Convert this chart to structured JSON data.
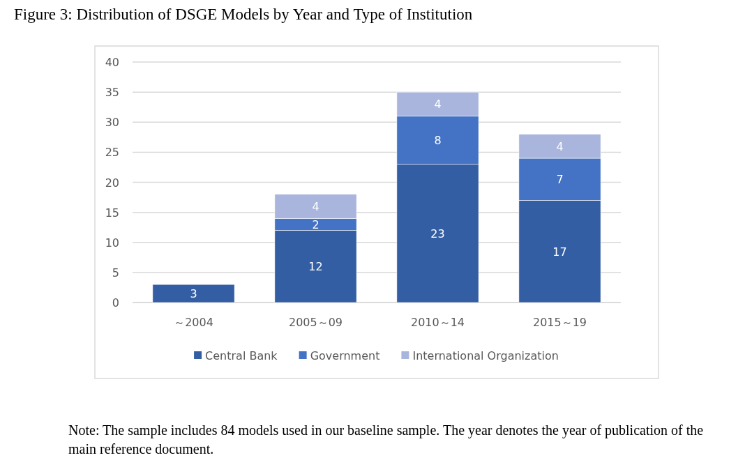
{
  "chart_data": {
    "type": "bar",
    "title": "Figure 3: Distribution of DSGE Models by Year and Type of Institution",
    "categories": [
      "～2004",
      "2005～09",
      "2010～14",
      "2015～19"
    ],
    "stacked": true,
    "series": [
      {
        "name": "Central Bank",
        "color": "#345ea3",
        "values": [
          3,
          12,
          23,
          17
        ]
      },
      {
        "name": "Government",
        "color": "#4472c4",
        "values": [
          null,
          2,
          8,
          7
        ]
      },
      {
        "name": "International Organization",
        "color": "#a9b5dc",
        "values": [
          null,
          4,
          4,
          4
        ]
      }
    ],
    "ylim": [
      0,
      40
    ],
    "yticks": [
      0,
      5,
      10,
      15,
      20,
      25,
      30,
      35,
      40
    ],
    "grid": "y",
    "legend": "bottom",
    "data_labels": true,
    "annotations": [
      "Note: The sample includes 84 models used in our baseline sample. The year denotes the year of publication of the main reference document."
    ]
  }
}
